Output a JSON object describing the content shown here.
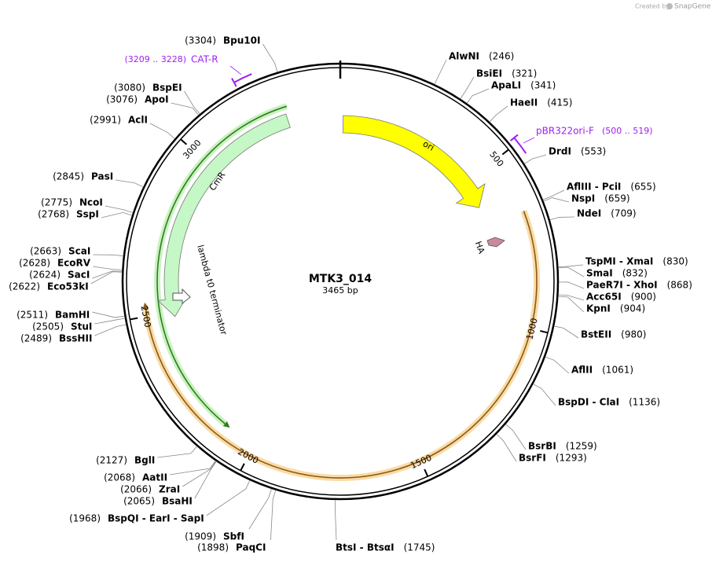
{
  "header": {
    "created": "Created by",
    "brand": "SnapGene"
  },
  "plasmid": {
    "name": "MTK3_014",
    "length": "3465 bp",
    "total": 3465,
    "ticks": [
      500,
      1000,
      1500,
      2000,
      2500,
      3000
    ],
    "features": [
      "ori",
      "CmR",
      "lambda t0 terminator",
      "HA"
    ],
    "primers": [
      {
        "name": "CAT-R",
        "start": 3209,
        "end": 3228,
        "range": "(3209 .. 3228)"
      },
      {
        "name": "pBR322ori-F",
        "start": 500,
        "end": 519,
        "range": "(500 .. 519)"
      }
    ],
    "enzymes": [
      {
        "name": "AlwNI",
        "site": {
          "value": 246,
          "label": "(246)"
        }
      },
      {
        "name": "BsiEI",
        "site": {
          "value": 321,
          "label": "(321)"
        }
      },
      {
        "name": "ApaLI",
        "site": {
          "value": 341,
          "label": "(341)"
        }
      },
      {
        "name": "HaeII",
        "site": {
          "value": 415,
          "label": "(415)"
        }
      },
      {
        "name": "DrdI",
        "site": {
          "value": 553,
          "label": "(553)"
        }
      },
      {
        "name": "AflIII  - PciI",
        "site": {
          "value": 655,
          "label": "(655)"
        }
      },
      {
        "name": "NspI",
        "site": {
          "value": 659,
          "label": "(659)"
        }
      },
      {
        "name": "NdeI",
        "site": {
          "value": 709,
          "label": "(709)"
        }
      },
      {
        "name": "TspMI  - XmaI",
        "site": {
          "value": 830,
          "label": "(830)"
        }
      },
      {
        "name": "SmaI",
        "site": {
          "value": 832,
          "label": "(832)"
        }
      },
      {
        "name": "PaeR7I  - XhoI",
        "site": {
          "value": 868,
          "label": "(868)"
        }
      },
      {
        "name": "Acc65I",
        "site": {
          "value": 900,
          "label": "(900)"
        }
      },
      {
        "name": "KpnI",
        "site": {
          "value": 904,
          "label": "(904)"
        }
      },
      {
        "name": "BstEII",
        "site": {
          "value": 980,
          "label": "(980)"
        }
      },
      {
        "name": "AflII",
        "site": {
          "value": 1061,
          "label": "(1061)"
        }
      },
      {
        "name": "BspDI  - ClaI",
        "site": {
          "value": 1136,
          "label": "(1136)"
        }
      },
      {
        "name": "BsrBI",
        "site": {
          "value": 1259,
          "label": "(1259)"
        }
      },
      {
        "name": "BsrFI",
        "site": {
          "value": 1293,
          "label": "(1293)"
        }
      },
      {
        "name": "BtsI  - BtsαI",
        "site": {
          "value": 1745,
          "label": "(1745)"
        }
      },
      {
        "name": "PaqCI",
        "site": {
          "value": 1898,
          "label": "(1898)"
        }
      },
      {
        "name": "SbfI",
        "site": {
          "value": 1909,
          "label": "(1909)"
        }
      },
      {
        "name": "BspQI  - EarI  - SapI",
        "site": {
          "value": 1968,
          "label": "(1968)"
        }
      },
      {
        "name": "BsaHI",
        "site": {
          "value": 2065,
          "label": "(2065)"
        }
      },
      {
        "name": "ZraI",
        "site": {
          "value": 2066,
          "label": "(2066)"
        }
      },
      {
        "name": "AatII",
        "site": {
          "value": 2068,
          "label": "(2068)"
        }
      },
      {
        "name": "BglI",
        "site": {
          "value": 2127,
          "label": "(2127)"
        }
      },
      {
        "name": "BssHII",
        "site": {
          "value": 2489,
          "label": "(2489)"
        }
      },
      {
        "name": "StuI",
        "site": {
          "value": 2505,
          "label": "(2505)"
        }
      },
      {
        "name": "BamHI",
        "site": {
          "value": 2511,
          "label": "(2511)"
        }
      },
      {
        "name": "Eco53kI",
        "site": {
          "value": 2622,
          "label": "(2622)"
        }
      },
      {
        "name": "SacI",
        "site": {
          "value": 2624,
          "label": "(2624)"
        }
      },
      {
        "name": "EcoRV",
        "site": {
          "value": 2628,
          "label": "(2628)"
        }
      },
      {
        "name": "ScaI",
        "site": {
          "value": 2663,
          "label": "(2663)"
        }
      },
      {
        "name": "SspI",
        "site": {
          "value": 2768,
          "label": "(2768)"
        }
      },
      {
        "name": "NcoI",
        "site": {
          "value": 2775,
          "label": "(2775)"
        }
      },
      {
        "name": "PasI",
        "site": {
          "value": 2845,
          "label": "(2845)"
        }
      },
      {
        "name": "AclI",
        "site": {
          "value": 2991,
          "label": "(2991)"
        }
      },
      {
        "name": "ApoI",
        "site": {
          "value": 3076,
          "label": "(3076)"
        }
      },
      {
        "name": "BspEI",
        "site": {
          "value": 3080,
          "label": "(3080)"
        }
      },
      {
        "name": "Bpu10I",
        "site": {
          "value": 3304,
          "label": "(3304)"
        }
      }
    ]
  }
}
